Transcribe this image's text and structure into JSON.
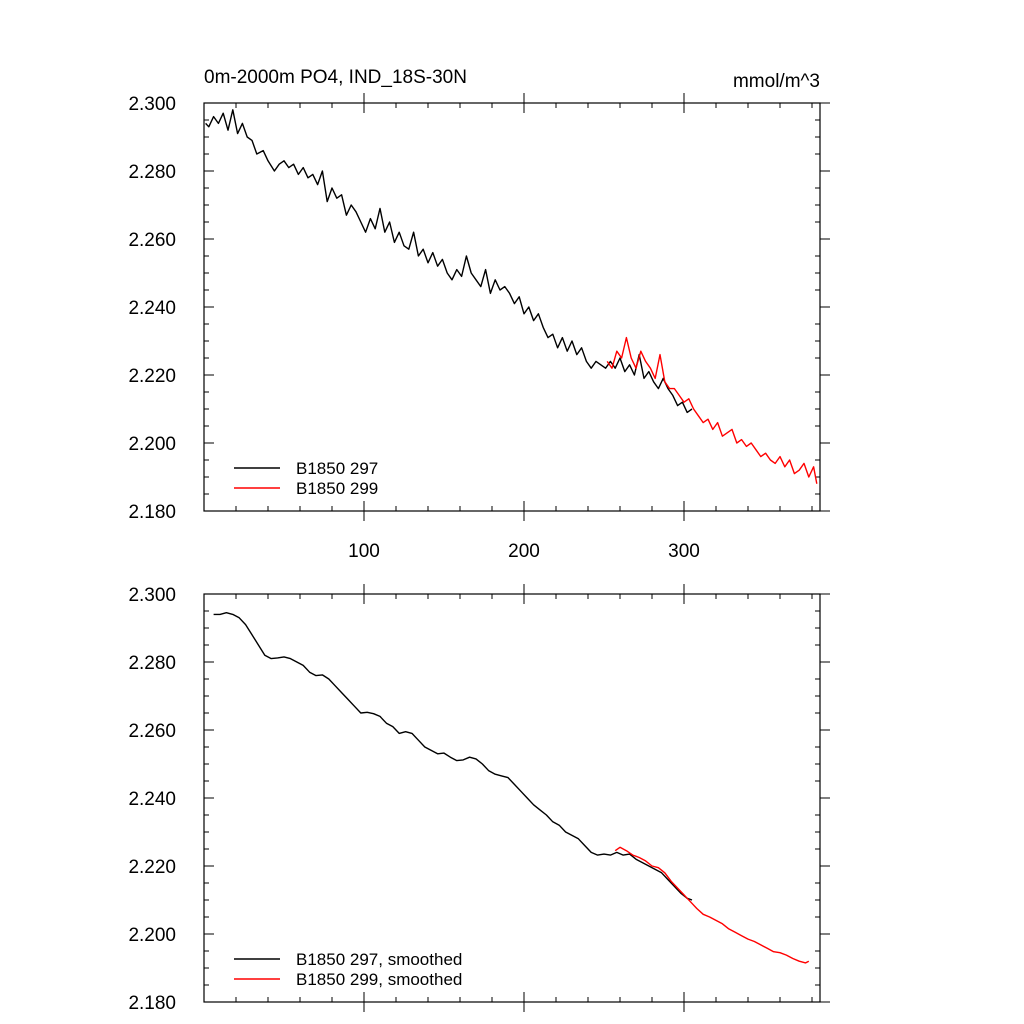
{
  "chart_data": [
    {
      "type": "line",
      "title": "0m-2000m PO4, IND_18S-30N",
      "units": "mmol/m^3",
      "xlabel": "",
      "ylabel": "",
      "xlim": [
        0,
        385
      ],
      "ylim": [
        2.18,
        2.3
      ],
      "x_ticks": [
        100,
        200,
        300
      ],
      "x_tick_labels": [
        "100",
        "200",
        "300"
      ],
      "y_ticks": [
        2.18,
        2.2,
        2.22,
        2.24,
        2.26,
        2.28,
        2.3
      ],
      "y_tick_labels": [
        "2.180",
        "2.200",
        "2.220",
        "2.240",
        "2.260",
        "2.280",
        "2.300"
      ],
      "grid": false,
      "legend_position": "bottom-left",
      "series": [
        {
          "name": "B1850 297",
          "color": "#000000",
          "points": [
            [
              1,
              2.294
            ],
            [
              3,
              2.293
            ],
            [
              6,
              2.296
            ],
            [
              9,
              2.294
            ],
            [
              12,
              2.297
            ],
            [
              15,
              2.292
            ],
            [
              18,
              2.298
            ],
            [
              21,
              2.291
            ],
            [
              24,
              2.294
            ],
            [
              27,
              2.29
            ],
            [
              30,
              2.289
            ],
            [
              33,
              2.285
            ],
            [
              37,
              2.286
            ],
            [
              40,
              2.283
            ],
            [
              44,
              2.28
            ],
            [
              47,
              2.282
            ],
            [
              50,
              2.283
            ],
            [
              53,
              2.281
            ],
            [
              56,
              2.282
            ],
            [
              59,
              2.279
            ],
            [
              62,
              2.281
            ],
            [
              65,
              2.278
            ],
            [
              68,
              2.279
            ],
            [
              71,
              2.276
            ],
            [
              74,
              2.28
            ],
            [
              77,
              2.271
            ],
            [
              80,
              2.275
            ],
            [
              83,
              2.272
            ],
            [
              86,
              2.273
            ],
            [
              89,
              2.267
            ],
            [
              92,
              2.27
            ],
            [
              95,
              2.268
            ],
            [
              98,
              2.265
            ],
            [
              101,
              2.262
            ],
            [
              104,
              2.266
            ],
            [
              107,
              2.263
            ],
            [
              110,
              2.269
            ],
            [
              113,
              2.262
            ],
            [
              116,
              2.265
            ],
            [
              119,
              2.259
            ],
            [
              122,
              2.262
            ],
            [
              125,
              2.258
            ],
            [
              128,
              2.257
            ],
            [
              131,
              2.262
            ],
            [
              134,
              2.255
            ],
            [
              137,
              2.257
            ],
            [
              140,
              2.253
            ],
            [
              143,
              2.256
            ],
            [
              146,
              2.252
            ],
            [
              149,
              2.254
            ],
            [
              152,
              2.25
            ],
            [
              155,
              2.248
            ],
            [
              158,
              2.251
            ],
            [
              161,
              2.249
            ],
            [
              164,
              2.255
            ],
            [
              167,
              2.25
            ],
            [
              170,
              2.248
            ],
            [
              173,
              2.246
            ],
            [
              176,
              2.251
            ],
            [
              179,
              2.244
            ],
            [
              182,
              2.248
            ],
            [
              185,
              2.245
            ],
            [
              188,
              2.246
            ],
            [
              191,
              2.244
            ],
            [
              194,
              2.241
            ],
            [
              197,
              2.243
            ],
            [
              200,
              2.238
            ],
            [
              203,
              2.24
            ],
            [
              206,
              2.236
            ],
            [
              209,
              2.238
            ],
            [
              212,
              2.234
            ],
            [
              215,
              2.231
            ],
            [
              218,
              2.232
            ],
            [
              221,
              2.228
            ],
            [
              224,
              2.231
            ],
            [
              227,
              2.227
            ],
            [
              230,
              2.23
            ],
            [
              233,
              2.226
            ],
            [
              236,
              2.228
            ],
            [
              239,
              2.224
            ],
            [
              242,
              2.222
            ],
            [
              245,
              2.224
            ],
            [
              248,
              2.223
            ],
            [
              251,
              2.222
            ],
            [
              254,
              2.224
            ],
            [
              257,
              2.222
            ],
            [
              260,
              2.225
            ],
            [
              263,
              2.221
            ],
            [
              266,
              2.223
            ],
            [
              269,
              2.22
            ],
            [
              272,
              2.226
            ],
            [
              275,
              2.219
            ],
            [
              278,
              2.221
            ],
            [
              281,
              2.218
            ],
            [
              284,
              2.216
            ],
            [
              287,
              2.219
            ],
            [
              290,
              2.216
            ],
            [
              293,
              2.214
            ],
            [
              296,
              2.211
            ],
            [
              299,
              2.212
            ],
            [
              302,
              2.209
            ],
            [
              305,
              2.21
            ]
          ]
        },
        {
          "name": "B1850 299",
          "color": "#ff0000",
          "points": [
            [
              252,
              2.224
            ],
            [
              255,
              2.222
            ],
            [
              258,
              2.227
            ],
            [
              261,
              2.225
            ],
            [
              264,
              2.231
            ],
            [
              267,
              2.225
            ],
            [
              270,
              2.222
            ],
            [
              273,
              2.227
            ],
            [
              276,
              2.224
            ],
            [
              279,
              2.222
            ],
            [
              282,
              2.219
            ],
            [
              285,
              2.226
            ],
            [
              288,
              2.218
            ],
            [
              291,
              2.216
            ],
            [
              294,
              2.216
            ],
            [
              297,
              2.214
            ],
            [
              300,
              2.212
            ],
            [
              303,
              2.213
            ],
            [
              306,
              2.21
            ],
            [
              309,
              2.208
            ],
            [
              312,
              2.206
            ],
            [
              315,
              2.207
            ],
            [
              318,
              2.204
            ],
            [
              321,
              2.206
            ],
            [
              324,
              2.202
            ],
            [
              327,
              2.203
            ],
            [
              330,
              2.204
            ],
            [
              333,
              2.2
            ],
            [
              336,
              2.201
            ],
            [
              339,
              2.199
            ],
            [
              342,
              2.2
            ],
            [
              345,
              2.198
            ],
            [
              348,
              2.196
            ],
            [
              351,
              2.197
            ],
            [
              354,
              2.195
            ],
            [
              357,
              2.194
            ],
            [
              360,
              2.196
            ],
            [
              363,
              2.193
            ],
            [
              366,
              2.195
            ],
            [
              369,
              2.191
            ],
            [
              372,
              2.192
            ],
            [
              375,
              2.194
            ],
            [
              378,
              2.19
            ],
            [
              381,
              2.193
            ],
            [
              383,
              2.188
            ]
          ]
        }
      ]
    },
    {
      "type": "line",
      "title": "",
      "xlabel": "",
      "ylabel": "",
      "xlim": [
        0,
        385
      ],
      "ylim": [
        2.18,
        2.3
      ],
      "x_ticks": [
        100,
        200,
        300
      ],
      "x_tick_labels": [],
      "y_ticks": [
        2.18,
        2.2,
        2.22,
        2.24,
        2.26,
        2.28,
        2.3
      ],
      "y_tick_labels": [
        "2.180",
        "2.200",
        "2.220",
        "2.240",
        "2.260",
        "2.280",
        "2.300"
      ],
      "grid": false,
      "legend_position": "bottom-left",
      "series": [
        {
          "name": "B1850 297, smoothed",
          "color": "#000000",
          "points": [
            [
              6,
              2.294
            ],
            [
              10,
              2.294
            ],
            [
              14,
              2.2945
            ],
            [
              18,
              2.294
            ],
            [
              22,
              2.293
            ],
            [
              26,
              2.291
            ],
            [
              30,
              2.288
            ],
            [
              34,
              2.285
            ],
            [
              38,
              2.282
            ],
            [
              42,
              2.281
            ],
            [
              46,
              2.2812
            ],
            [
              50,
              2.2815
            ],
            [
              54,
              2.281
            ],
            [
              58,
              2.28
            ],
            [
              62,
              2.279
            ],
            [
              66,
              2.277
            ],
            [
              70,
              2.276
            ],
            [
              74,
              2.2762
            ],
            [
              78,
              2.275
            ],
            [
              82,
              2.273
            ],
            [
              86,
              2.271
            ],
            [
              90,
              2.269
            ],
            [
              94,
              2.267
            ],
            [
              98,
              2.265
            ],
            [
              102,
              2.2652
            ],
            [
              106,
              2.2648
            ],
            [
              110,
              2.264
            ],
            [
              114,
              2.262
            ],
            [
              118,
              2.261
            ],
            [
              122,
              2.259
            ],
            [
              126,
              2.2595
            ],
            [
              130,
              2.259
            ],
            [
              134,
              2.257
            ],
            [
              138,
              2.255
            ],
            [
              142,
              2.254
            ],
            [
              146,
              2.253
            ],
            [
              150,
              2.2532
            ],
            [
              154,
              2.252
            ],
            [
              158,
              2.251
            ],
            [
              162,
              2.2512
            ],
            [
              166,
              2.252
            ],
            [
              170,
              2.2515
            ],
            [
              174,
              2.25
            ],
            [
              178,
              2.248
            ],
            [
              182,
              2.247
            ],
            [
              186,
              2.2465
            ],
            [
              190,
              2.246
            ],
            [
              194,
              2.244
            ],
            [
              198,
              2.242
            ],
            [
              202,
              2.24
            ],
            [
              206,
              2.238
            ],
            [
              210,
              2.2365
            ],
            [
              214,
              2.235
            ],
            [
              218,
              2.233
            ],
            [
              222,
              2.232
            ],
            [
              226,
              2.23
            ],
            [
              230,
              2.229
            ],
            [
              234,
              2.228
            ],
            [
              238,
              2.226
            ],
            [
              242,
              2.224
            ],
            [
              246,
              2.2232
            ],
            [
              250,
              2.2235
            ],
            [
              254,
              2.2232
            ],
            [
              258,
              2.224
            ],
            [
              262,
              2.2232
            ],
            [
              266,
              2.2235
            ],
            [
              270,
              2.222
            ],
            [
              274,
              2.221
            ],
            [
              278,
              2.22
            ],
            [
              282,
              2.219
            ],
            [
              286,
              2.218
            ],
            [
              290,
              2.216
            ],
            [
              294,
              2.214
            ],
            [
              298,
              2.212
            ],
            [
              302,
              2.2105
            ],
            [
              305,
              2.21
            ]
          ]
        },
        {
          "name": "B1850 299, smoothed",
          "color": "#ff0000",
          "points": [
            [
              257,
              2.2245
            ],
            [
              260,
              2.2255
            ],
            [
              264,
              2.2245
            ],
            [
              268,
              2.2232
            ],
            [
              272,
              2.2225
            ],
            [
              276,
              2.2215
            ],
            [
              280,
              2.22
            ],
            [
              284,
              2.2195
            ],
            [
              288,
              2.218
            ],
            [
              292,
              2.2155
            ],
            [
              296,
              2.2135
            ],
            [
              300,
              2.2115
            ],
            [
              304,
              2.2095
            ],
            [
              308,
              2.2075
            ],
            [
              312,
              2.2058
            ],
            [
              316,
              2.205
            ],
            [
              320,
              2.204
            ],
            [
              324,
              2.203
            ],
            [
              328,
              2.2015
            ],
            [
              332,
              2.2005
            ],
            [
              336,
              2.1995
            ],
            [
              340,
              2.1985
            ],
            [
              344,
              2.1978
            ],
            [
              348,
              2.1968
            ],
            [
              352,
              2.1958
            ],
            [
              356,
              2.1948
            ],
            [
              360,
              2.1945
            ],
            [
              364,
              2.1938
            ],
            [
              368,
              2.1928
            ],
            [
              372,
              2.192
            ],
            [
              376,
              2.1915
            ],
            [
              378,
              2.192
            ]
          ]
        }
      ]
    }
  ]
}
